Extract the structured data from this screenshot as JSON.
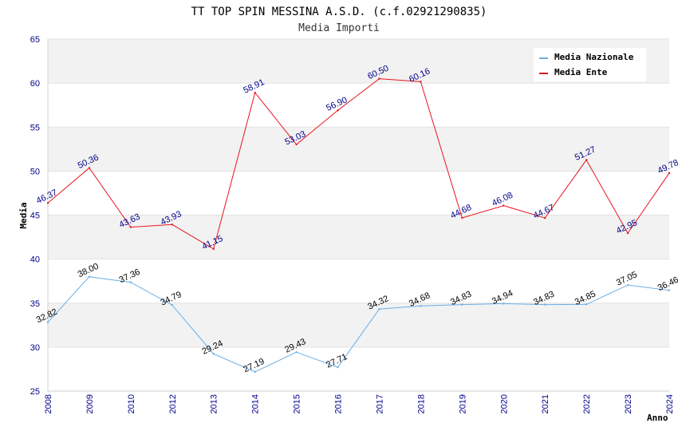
{
  "chart_data": {
    "type": "line",
    "title": "TT TOP SPIN MESSINA A.S.D. (c.f.02921290835)",
    "subtitle": "Media Importi",
    "xlabel": "Anno",
    "ylabel": "Media",
    "ylim": [
      25,
      65
    ],
    "yticks": [
      25,
      30,
      35,
      40,
      45,
      50,
      55,
      60,
      65
    ],
    "categories": [
      "2008",
      "2009",
      "2010",
      "2012",
      "2013",
      "2014",
      "2015",
      "2016",
      "2017",
      "2018",
      "2019",
      "2020",
      "2021",
      "2022",
      "2023",
      "2024"
    ],
    "legend_position": "top-right",
    "series": [
      {
        "name": "Media Nazionale",
        "color": "#6aaee6",
        "label_color": "#000000",
        "values": [
          32.82,
          38.0,
          37.36,
          34.79,
          29.24,
          27.19,
          29.43,
          27.71,
          34.32,
          34.68,
          34.83,
          34.94,
          34.83,
          34.85,
          37.05,
          36.46
        ],
        "labels": [
          "32.82",
          "38.00",
          "37.36",
          "34.79",
          "29.24",
          "27.19",
          "29.43",
          "27.71",
          "34.32",
          "34.68",
          "34.83",
          "34.94",
          "34.83",
          "34.85",
          "37.05",
          "36.46"
        ]
      },
      {
        "name": "Media Ente",
        "color": "#e8141c",
        "label_color": "#00008b",
        "values": [
          46.37,
          50.36,
          43.63,
          43.93,
          41.15,
          58.91,
          53.03,
          56.9,
          60.5,
          60.16,
          44.68,
          46.08,
          44.67,
          51.27,
          42.95,
          49.78
        ],
        "labels": [
          "46.37",
          "50.36",
          "43.63",
          "43.93",
          "41.15",
          "58.91",
          "53.03",
          "56.90",
          "60.50",
          "60.16",
          "44.68",
          "46.08",
          "44.67",
          "51.27",
          "42.95",
          "49.78"
        ]
      }
    ]
  }
}
